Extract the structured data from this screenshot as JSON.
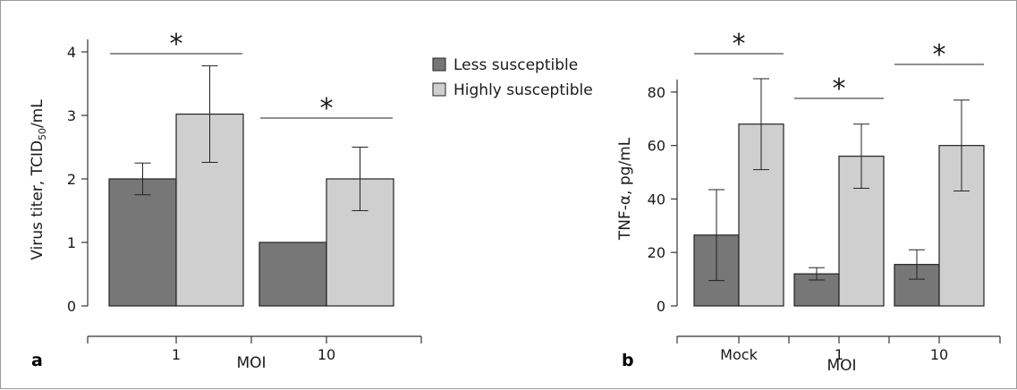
{
  "colors": {
    "less": "#777777",
    "high": "#cfcfcf",
    "stroke": "#222222",
    "axis": "#333333"
  },
  "legend": {
    "items": [
      {
        "label": "Less susceptible",
        "color": "#777777"
      },
      {
        "label": "Highly susceptible",
        "color": "#cfcfcf"
      }
    ]
  },
  "chart_data": [
    {
      "type": "bar",
      "panel_label": "a",
      "xlabel": "MOI",
      "ylabel_main": "Virus titer, TCID",
      "ylabel_sub": "50",
      "ylabel_tail": "/mL",
      "categories": [
        "1",
        "10"
      ],
      "ylim": [
        0,
        4
      ],
      "yticks": [
        0,
        1,
        2,
        3,
        4
      ],
      "series": [
        {
          "name": "Less susceptible",
          "values": [
            2.0,
            1.0
          ],
          "errors": [
            0.25,
            0.0
          ]
        },
        {
          "name": "Highly susceptible",
          "values": [
            3.02,
            2.0
          ],
          "errors": [
            0.76,
            0.5
          ]
        }
      ],
      "significance": [
        {
          "category": 0,
          "symbol": "*"
        },
        {
          "category": 1,
          "symbol": "*"
        }
      ]
    },
    {
      "type": "bar",
      "panel_label": "b",
      "xlabel": "MOI",
      "ylabel": "TNF-α, pg/mL",
      "categories": [
        "Mock",
        "1",
        "10"
      ],
      "ylim": [
        0,
        90
      ],
      "yticks": [
        0,
        20,
        40,
        60,
        80
      ],
      "series": [
        {
          "name": "Less susceptible",
          "values": [
            26.5,
            12.0,
            15.5
          ],
          "errors": [
            17.0,
            2.3,
            5.5
          ]
        },
        {
          "name": "Highly susceptible",
          "values": [
            68.0,
            56.0,
            60.0
          ],
          "errors": [
            17.0,
            12.0,
            17.0
          ]
        }
      ],
      "significance": [
        {
          "category": 0,
          "symbol": "*"
        },
        {
          "category": 1,
          "symbol": "*"
        },
        {
          "category": 2,
          "symbol": "*"
        }
      ]
    }
  ]
}
